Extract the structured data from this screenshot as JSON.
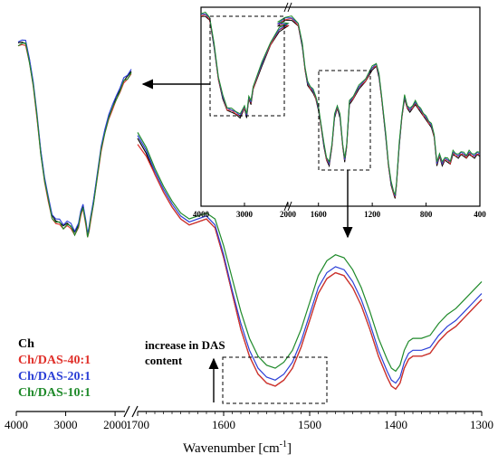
{
  "chart_data": {
    "type": "line",
    "title": "",
    "xlabel": "Wavenumber [cm",
    "xlabel_sup": "-1",
    "xlabel_close": "]",
    "ylabel": "",
    "legend_placement": "bottom-left",
    "series": [
      {
        "name": "Ch",
        "color": "#000000"
      },
      {
        "name": "Ch/DAS-40:1",
        "color": "#e0302a"
      },
      {
        "name": "Ch/DAS-20:1",
        "color": "#2b3fd6"
      },
      {
        "name": "Ch/DAS-10:1",
        "color": "#1f8a2a"
      }
    ],
    "annotation": {
      "line1": "increase in DAS",
      "line2": "content"
    },
    "main_axis": {
      "left_segment_ticks": [
        "4000",
        "3000",
        "2000"
      ],
      "right_segment_ticks": [
        "1700",
        "1600",
        "1500",
        "1400",
        "1300"
      ],
      "left_segment_xlim": [
        4000,
        1800
      ],
      "right_segment_xlim": [
        1700,
        1300
      ],
      "broken": true
    },
    "inset_axis": {
      "ticks": [
        "4000",
        "3000",
        "2000",
        "1600",
        "1200",
        "800",
        "400"
      ],
      "xlim": [
        4000,
        400
      ],
      "broken": true,
      "grid": false
    },
    "left_panel": {
      "x": [
        3800,
        3750,
        3700,
        3650,
        3600,
        3550,
        3500,
        3450,
        3400,
        3350,
        3300,
        3250,
        3200,
        3150,
        3100,
        3050,
        3000,
        2970,
        2940,
        2920,
        2900,
        2880,
        2860,
        2840,
        2800,
        2750,
        2700,
        2650,
        2600,
        2550,
        2500,
        2450,
        2400,
        2350,
        2300
      ],
      "y": [
        0.98,
        0.98,
        0.97,
        0.9,
        0.78,
        0.62,
        0.46,
        0.32,
        0.22,
        0.15,
        0.12,
        0.11,
        0.1,
        0.11,
        0.09,
        0.07,
        0.1,
        0.15,
        0.2,
        0.15,
        0.1,
        0.06,
        0.08,
        0.12,
        0.22,
        0.34,
        0.46,
        0.56,
        0.62,
        0.66,
        0.72,
        0.75,
        0.79,
        0.82,
        0.84
      ]
    },
    "right_panel": {
      "x": [
        1700,
        1690,
        1680,
        1670,
        1660,
        1650,
        1640,
        1630,
        1620,
        1610,
        1600,
        1590,
        1580,
        1570,
        1560,
        1550,
        1540,
        1530,
        1520,
        1510,
        1500,
        1490,
        1480,
        1470,
        1460,
        1450,
        1440,
        1430,
        1420,
        1410,
        1405,
        1400,
        1395,
        1390,
        1385,
        1380,
        1370,
        1360,
        1350,
        1340,
        1330,
        1320,
        1310,
        1300
      ],
      "series_y": {
        "Ch": [
          0.9,
          0.85,
          0.78,
          0.72,
          0.67,
          0.63,
          0.61,
          0.62,
          0.63,
          0.6,
          0.5,
          0.38,
          0.26,
          0.17,
          0.11,
          0.08,
          0.07,
          0.09,
          0.13,
          0.2,
          0.29,
          0.38,
          0.43,
          0.45,
          0.44,
          0.4,
          0.34,
          0.26,
          0.17,
          0.1,
          0.07,
          0.06,
          0.08,
          0.13,
          0.16,
          0.17,
          0.17,
          0.18,
          0.22,
          0.25,
          0.27,
          0.3,
          0.33,
          0.36
        ],
        "Ch/DAS-40:1": [
          0.88,
          0.84,
          0.78,
          0.72,
          0.67,
          0.63,
          0.61,
          0.62,
          0.63,
          0.6,
          0.5,
          0.38,
          0.26,
          0.17,
          0.11,
          0.08,
          0.07,
          0.09,
          0.13,
          0.2,
          0.29,
          0.38,
          0.43,
          0.45,
          0.44,
          0.4,
          0.34,
          0.26,
          0.17,
          0.1,
          0.07,
          0.06,
          0.08,
          0.13,
          0.16,
          0.17,
          0.17,
          0.18,
          0.22,
          0.25,
          0.27,
          0.3,
          0.33,
          0.36
        ],
        "Ch/DAS-20:1": [
          0.91,
          0.86,
          0.79,
          0.73,
          0.68,
          0.64,
          0.62,
          0.63,
          0.64,
          0.61,
          0.51,
          0.39,
          0.28,
          0.19,
          0.13,
          0.1,
          0.09,
          0.11,
          0.15,
          0.22,
          0.31,
          0.4,
          0.45,
          0.47,
          0.46,
          0.42,
          0.36,
          0.28,
          0.19,
          0.12,
          0.09,
          0.08,
          0.1,
          0.15,
          0.18,
          0.19,
          0.19,
          0.2,
          0.24,
          0.27,
          0.29,
          0.32,
          0.35,
          0.38
        ],
        "Ch/DAS-10:1": [
          0.92,
          0.87,
          0.8,
          0.74,
          0.69,
          0.65,
          0.63,
          0.64,
          0.65,
          0.63,
          0.54,
          0.43,
          0.32,
          0.23,
          0.17,
          0.14,
          0.13,
          0.15,
          0.19,
          0.26,
          0.35,
          0.44,
          0.49,
          0.51,
          0.5,
          0.46,
          0.4,
          0.32,
          0.23,
          0.16,
          0.13,
          0.12,
          0.14,
          0.19,
          0.22,
          0.23,
          0.23,
          0.24,
          0.28,
          0.31,
          0.33,
          0.36,
          0.39,
          0.42
        ]
      }
    },
    "inset_panel": {
      "x": [
        4000,
        3900,
        3800,
        3700,
        3600,
        3500,
        3400,
        3300,
        3200,
        3100,
        3000,
        2950,
        2900,
        2850,
        2800,
        2600,
        2400,
        2200,
        2000,
        1900,
        1850,
        1800,
        1750,
        1720,
        1700,
        1680,
        1660,
        1640,
        1620,
        1600,
        1580,
        1560,
        1540,
        1520,
        1500,
        1480,
        1460,
        1440,
        1420,
        1405,
        1390,
        1370,
        1340,
        1300,
        1250,
        1200,
        1170,
        1150,
        1130,
        1100,
        1080,
        1060,
        1040,
        1030,
        1020,
        1000,
        980,
        960,
        940,
        920,
        900,
        880,
        860,
        840,
        820,
        800,
        780,
        760,
        740,
        720,
        700,
        680,
        660,
        640,
        620,
        600,
        580,
        560,
        540,
        520,
        500,
        480,
        460,
        440,
        420,
        400
      ],
      "y": [
        0.98,
        0.98,
        0.96,
        0.82,
        0.65,
        0.55,
        0.49,
        0.48,
        0.47,
        0.45,
        0.5,
        0.45,
        0.55,
        0.52,
        0.6,
        0.72,
        0.83,
        0.9,
        0.93,
        0.93,
        0.96,
        0.96,
        0.93,
        0.82,
        0.7,
        0.62,
        0.6,
        0.58,
        0.55,
        0.49,
        0.4,
        0.3,
        0.23,
        0.2,
        0.3,
        0.45,
        0.5,
        0.45,
        0.3,
        0.22,
        0.3,
        0.52,
        0.55,
        0.6,
        0.64,
        0.7,
        0.72,
        0.66,
        0.55,
        0.35,
        0.2,
        0.1,
        0.05,
        0.03,
        0.1,
        0.3,
        0.45,
        0.55,
        0.5,
        0.48,
        0.5,
        0.52,
        0.5,
        0.48,
        0.46,
        0.44,
        0.42,
        0.4,
        0.35,
        0.2,
        0.25,
        0.2,
        0.23,
        0.22,
        0.21,
        0.26,
        0.25,
        0.24,
        0.26,
        0.25,
        0.24,
        0.26,
        0.25,
        0.24,
        0.26,
        0.25
      ]
    }
  }
}
